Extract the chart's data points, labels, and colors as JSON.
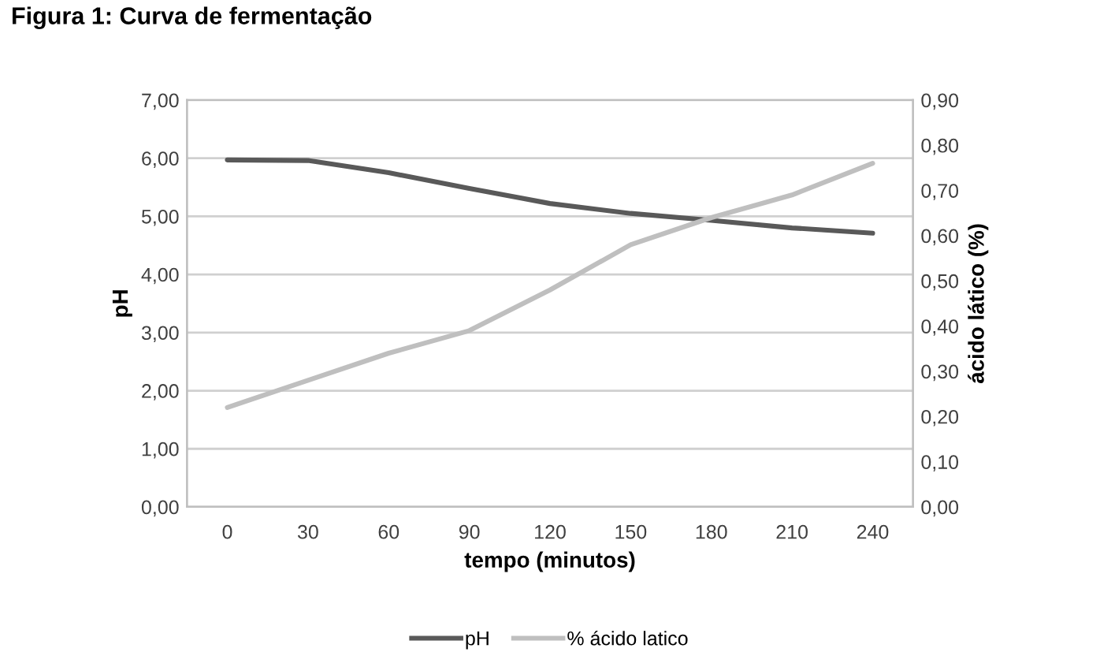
{
  "chart_data": {
    "type": "line",
    "title": "Figura 1: Curva de fermentação",
    "xlabel": "tempo (minutos)",
    "ylabel": "pH",
    "y2label": "ácido lático (%)",
    "categories": [
      "0",
      "30",
      "60",
      "90",
      "120",
      "150",
      "180",
      "210",
      "240"
    ],
    "series": [
      {
        "name": "pH",
        "color": "#595959",
        "values": [
          5.97,
          5.96,
          5.75,
          5.48,
          5.22,
          5.05,
          4.93,
          4.8,
          4.71
        ]
      },
      {
        "name": "% ácido latico",
        "color": "#bfbfbf",
        "axis": "y2",
        "values": [
          0.22,
          0.28,
          0.34,
          0.39,
          0.48,
          0.58,
          0.64,
          0.69,
          0.76
        ]
      }
    ],
    "ylim": [
      0,
      7
    ],
    "yticks": [
      {
        "value": 0,
        "label": "0,00"
      },
      {
        "value": 1,
        "label": "1,00"
      },
      {
        "value": 2,
        "label": "2,00"
      },
      {
        "value": 3,
        "label": "3,00"
      },
      {
        "value": 4,
        "label": "4,00"
      },
      {
        "value": 5,
        "label": "5,00"
      },
      {
        "value": 6,
        "label": "6,00"
      },
      {
        "value": 7,
        "label": "7,00"
      }
    ],
    "y2lim": [
      0,
      0.9
    ],
    "y2ticks": [
      {
        "value": 0,
        "label": "0,00"
      },
      {
        "value": 0.1,
        "label": "0,10"
      },
      {
        "value": 0.2,
        "label": "0,20"
      },
      {
        "value": 0.3,
        "label": "0,30"
      },
      {
        "value": 0.4,
        "label": "0,40"
      },
      {
        "value": 0.5,
        "label": "0,50"
      },
      {
        "value": 0.6,
        "label": "0,60"
      },
      {
        "value": 0.7,
        "label": "0,70"
      },
      {
        "value": 0.8,
        "label": "0,80"
      },
      {
        "value": 0.9,
        "label": "0,90"
      }
    ],
    "grid": "y",
    "legend": "bottom",
    "marker": "none",
    "line_style": "solid"
  }
}
